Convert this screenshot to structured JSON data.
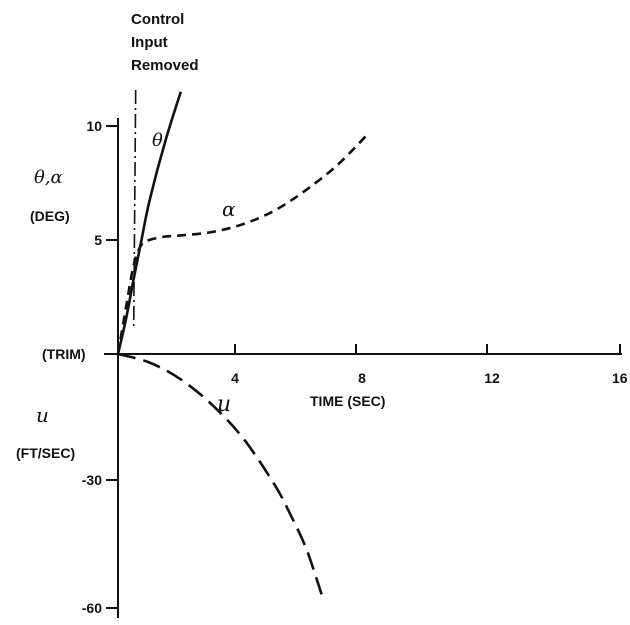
{
  "chart_data": {
    "type": "line",
    "annotation": [
      "Control",
      "Input",
      "Removed"
    ],
    "annotation_x": 0.5,
    "x_axis": {
      "label": "TIME (SEC)",
      "ticks": [
        4,
        8,
        12,
        16
      ],
      "tick_labels": [
        "4",
        "8",
        "12",
        "16"
      ],
      "range": [
        0,
        16
      ]
    },
    "y_axis_upper": {
      "label_symbol": "θ,α",
      "label_unit": "(DEG)",
      "ticks": [
        5,
        10
      ],
      "tick_labels": [
        "5",
        "10"
      ],
      "range": [
        0,
        11.5
      ]
    },
    "y_axis_lower": {
      "label_symbol": "u",
      "label_unit": "(FT/SEC)",
      "ticks": [
        -30,
        -60
      ],
      "tick_labels": [
        "-30",
        "-60"
      ],
      "range": [
        -60,
        0
      ]
    },
    "origin_label": "(TRIM)",
    "series": [
      {
        "name": "θ",
        "axis": "upper",
        "style": "solid",
        "x": [
          0,
          0.25,
          0.5,
          0.75,
          1.0,
          1.5,
          2.0
        ],
        "y": [
          0,
          1.5,
          3.3,
          5.0,
          6.7,
          9.3,
          11.5
        ]
      },
      {
        "name": "α",
        "axis": "upper",
        "style": "dashed",
        "x": [
          0,
          0.25,
          0.5,
          0.75,
          1.0,
          1.5,
          2.0,
          3.0,
          4.0,
          5.0,
          6.0,
          7.0,
          8.0
        ],
        "y": [
          0,
          2.0,
          3.9,
          4.8,
          5.0,
          5.15,
          5.2,
          5.35,
          5.7,
          6.3,
          7.2,
          8.3,
          9.7
        ]
      },
      {
        "name": "u",
        "axis": "lower",
        "style": "longdash",
        "x": [
          0,
          1,
          2,
          3,
          4,
          5,
          5.5,
          6,
          6.5
        ],
        "y": [
          0,
          -2,
          -6,
          -12,
          -20,
          -31,
          -38,
          -46,
          -57
        ]
      }
    ]
  }
}
